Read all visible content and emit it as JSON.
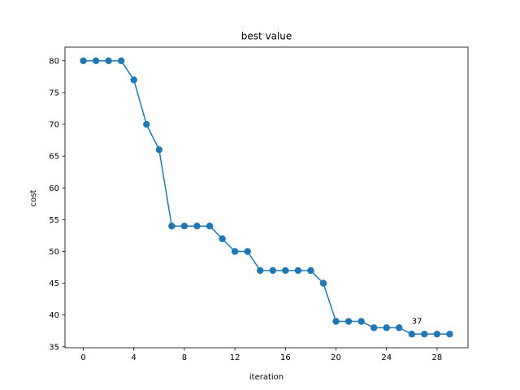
{
  "chart_data": {
    "type": "line",
    "title": "best value",
    "xlabel": "iteration",
    "ylabel": "cost",
    "xlim": [
      -1.45,
      30.45
    ],
    "ylim": [
      34.85,
      82.15
    ],
    "x_ticks": [
      0,
      4,
      8,
      12,
      16,
      20,
      24,
      28
    ],
    "y_ticks": [
      35,
      40,
      45,
      50,
      55,
      60,
      65,
      70,
      75,
      80
    ],
    "grid": false,
    "series": [
      {
        "x": [
          0,
          1,
          2,
          3,
          4,
          5,
          6,
          7,
          8,
          9,
          10,
          11,
          12,
          13,
          14,
          15,
          16,
          17,
          18,
          19,
          20,
          21,
          22,
          23,
          24,
          25,
          26,
          27,
          28,
          29
        ],
        "values": [
          80,
          80,
          80,
          80,
          77,
          70,
          66,
          54,
          54,
          54,
          54,
          52,
          50,
          50,
          47,
          47,
          47,
          47,
          47,
          45,
          39,
          39,
          39,
          38,
          38,
          38,
          37,
          37,
          37,
          37
        ],
        "color": "#1f77b4",
        "marker": "circle"
      }
    ],
    "annotations": [
      {
        "text": "37",
        "x": 26,
        "y": 37
      }
    ]
  }
}
